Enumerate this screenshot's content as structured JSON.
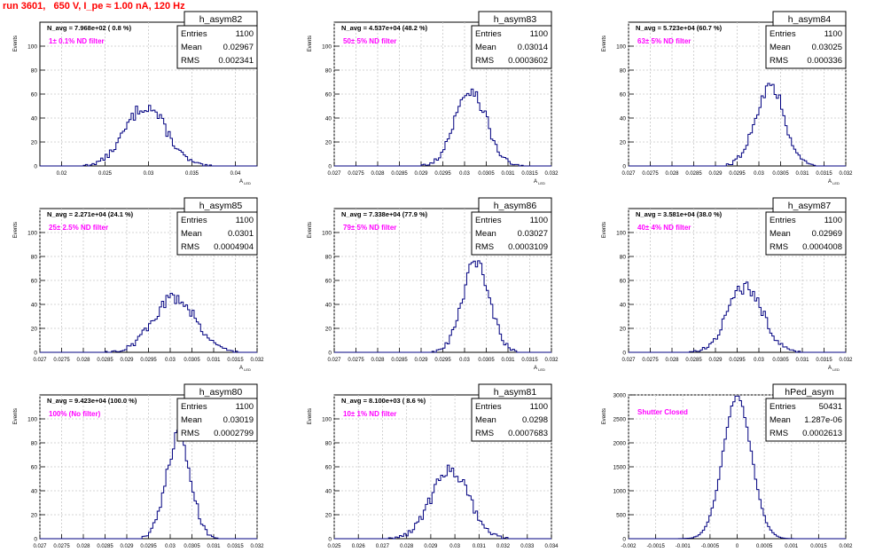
{
  "run_title": "run 3601,   650 V, I_pe ≈ 1.00 nA, 120 Hz",
  "colors": {
    "histogram": "#000080",
    "grid": "#c8c8c8",
    "filter_label": "#ff00ff",
    "run_title": "#ff0000",
    "frame": "#000000"
  },
  "stat_labels": {
    "entries": "Entries",
    "mean": "Mean",
    "rms": "RMS"
  },
  "chart_data": [
    {
      "type": "histogram",
      "name": "h_asym82",
      "navg": "N_avg = 7.968e+02 ( 0.8 %)",
      "filter_label": "1± 0.1% ND filter",
      "ylabel": "Events",
      "xlabel": "A_LED",
      "grid": true,
      "stats": {
        "entries": "1100",
        "mean": "0.02967",
        "rms": "0.002341"
      },
      "xlim": [
        0.0175,
        0.0425
      ],
      "ylim": [
        0,
        120
      ],
      "xticks": [
        0.02,
        0.025,
        0.03,
        0.035,
        0.04
      ],
      "xtick_labels": [
        "0.02",
        "0.025",
        "0.03",
        "0.035",
        "0.04"
      ],
      "yticks": [
        0,
        20,
        40,
        60,
        80,
        100
      ],
      "mean": 0.02967,
      "rms": 0.002341,
      "peak": 50
    },
    {
      "type": "histogram",
      "name": "h_asym83",
      "navg": "N_avg = 4.537e+04 (48.2 %)",
      "filter_label": "50± 5% ND filter",
      "ylabel": "Events",
      "xlabel": "A_LED",
      "grid": true,
      "stats": {
        "entries": "1100",
        "mean": "0.03014",
        "rms": "0.0003602"
      },
      "xlim": [
        0.027,
        0.032
      ],
      "ylim": [
        0,
        120
      ],
      "xticks": [
        0.027,
        0.0275,
        0.028,
        0.0285,
        0.029,
        0.0295,
        0.03,
        0.0305,
        0.031,
        0.0315,
        0.032
      ],
      "xtick_labels": [
        "0.027",
        "0.0275",
        "0.028",
        "0.0285",
        "0.029",
        "0.0295",
        "0.03",
        "0.0305",
        "0.031",
        "0.0315",
        "0.032"
      ],
      "yticks": [
        0,
        20,
        40,
        60,
        80,
        100
      ],
      "mean": 0.03014,
      "rms": 0.0003602,
      "peak": 64
    },
    {
      "type": "histogram",
      "name": "h_asym84",
      "navg": "N_avg = 5.723e+04 (60.7 %)",
      "filter_label": "63± 5% ND filter",
      "ylabel": "Events",
      "xlabel": "A_LED",
      "grid": true,
      "stats": {
        "entries": "1100",
        "mean": "0.03025",
        "rms": "0.000336"
      },
      "xlim": [
        0.027,
        0.032
      ],
      "ylim": [
        0,
        120
      ],
      "xticks": [
        0.027,
        0.0275,
        0.028,
        0.0285,
        0.029,
        0.0295,
        0.03,
        0.0305,
        0.031,
        0.0315,
        0.032
      ],
      "xtick_labels": [
        "0.027",
        "0.0275",
        "0.028",
        "0.0285",
        "0.029",
        "0.0295",
        "0.03",
        "0.0305",
        "0.031",
        "0.0315",
        "0.032"
      ],
      "yticks": [
        0,
        20,
        40,
        60,
        80,
        100
      ],
      "mean": 0.03025,
      "rms": 0.000336,
      "peak": 67
    },
    {
      "type": "histogram",
      "name": "h_asym85",
      "navg": "N_avg = 2.271e+04 (24.1 %)",
      "filter_label": "25± 2.5% ND filter",
      "ylabel": "Events",
      "xlabel": "A_LED",
      "grid": true,
      "stats": {
        "entries": "1100",
        "mean": "0.0301",
        "rms": "0.0004904"
      },
      "xlim": [
        0.027,
        0.032
      ],
      "ylim": [
        0,
        120
      ],
      "xticks": [
        0.027,
        0.0275,
        0.028,
        0.0285,
        0.029,
        0.0295,
        0.03,
        0.0305,
        0.031,
        0.0315,
        0.032
      ],
      "xtick_labels": [
        "0.027",
        "0.0275",
        "0.028",
        "0.0285",
        "0.029",
        "0.0295",
        "0.03",
        "0.0305",
        "0.031",
        "0.0315",
        "0.032"
      ],
      "yticks": [
        0,
        20,
        40,
        60,
        80,
        100
      ],
      "mean": 0.0301,
      "rms": 0.0004904,
      "peak": 46
    },
    {
      "type": "histogram",
      "name": "h_asym86",
      "navg": "N_avg = 7.338e+04 (77.9 %)",
      "filter_label": "79± 5% ND filter",
      "ylabel": "Events",
      "xlabel": "A_LED",
      "grid": true,
      "stats": {
        "entries": "1100",
        "mean": "0.03027",
        "rms": "0.0003109"
      },
      "xlim": [
        0.027,
        0.032
      ],
      "ylim": [
        0,
        120
      ],
      "xticks": [
        0.027,
        0.0275,
        0.028,
        0.0285,
        0.029,
        0.0295,
        0.03,
        0.0305,
        0.031,
        0.0315,
        0.032
      ],
      "xtick_labels": [
        "0.027",
        "0.0275",
        "0.028",
        "0.0285",
        "0.029",
        "0.0295",
        "0.03",
        "0.0305",
        "0.031",
        "0.0315",
        "0.032"
      ],
      "yticks": [
        0,
        20,
        40,
        60,
        80,
        100
      ],
      "mean": 0.03027,
      "rms": 0.0003109,
      "peak": 75
    },
    {
      "type": "histogram",
      "name": "h_asym87",
      "navg": "N_avg = 3.581e+04 (38.0 %)",
      "filter_label": "40± 4% ND filter",
      "ylabel": "Events",
      "xlabel": "A_LED",
      "grid": true,
      "stats": {
        "entries": "1100",
        "mean": "0.02969",
        "rms": "0.0004008"
      },
      "xlim": [
        0.027,
        0.032
      ],
      "ylim": [
        0,
        120
      ],
      "xticks": [
        0.027,
        0.0275,
        0.028,
        0.0285,
        0.029,
        0.0295,
        0.03,
        0.0305,
        0.031,
        0.0315,
        0.032
      ],
      "xtick_labels": [
        "0.027",
        "0.0275",
        "0.028",
        "0.0285",
        "0.029",
        "0.0295",
        "0.03",
        "0.0305",
        "0.031",
        "0.0315",
        "0.032"
      ],
      "yticks": [
        0,
        20,
        40,
        60,
        80,
        100
      ],
      "mean": 0.02969,
      "rms": 0.0004008,
      "peak": 55
    },
    {
      "type": "histogram",
      "name": "h_asym80",
      "navg": "N_avg = 9.423e+04 (100.0 %)",
      "filter_label": "100% (No filter)",
      "ylabel": "Events",
      "xlabel": "A_LED",
      "grid": true,
      "stats": {
        "entries": "1100",
        "mean": "0.03019",
        "rms": "0.0002799"
      },
      "xlim": [
        0.027,
        0.032
      ],
      "ylim": [
        0,
        120
      ],
      "xticks": [
        0.027,
        0.0275,
        0.028,
        0.0285,
        0.029,
        0.0295,
        0.03,
        0.0305,
        0.031,
        0.0315,
        0.032
      ],
      "xtick_labels": [
        "0.027",
        "0.0275",
        "0.028",
        "0.0285",
        "0.029",
        "0.0295",
        "0.03",
        "0.0305",
        "0.031",
        "0.0315",
        "0.032"
      ],
      "yticks": [
        0,
        20,
        40,
        60,
        80,
        100
      ],
      "mean": 0.03019,
      "rms": 0.0002799,
      "peak": 85
    },
    {
      "type": "histogram",
      "name": "h_asym81",
      "navg": "N_avg = 8.100e+03 ( 8.6 %)",
      "filter_label": "10± 1% ND filter",
      "ylabel": "Events",
      "xlabel": "A_LED",
      "grid": true,
      "stats": {
        "entries": "1100",
        "mean": "0.0298",
        "rms": "0.0007683"
      },
      "xlim": [
        0.025,
        0.034
      ],
      "ylim": [
        0,
        120
      ],
      "xticks": [
        0.025,
        0.026,
        0.027,
        0.028,
        0.029,
        0.03,
        0.031,
        0.032,
        0.033,
        0.034
      ],
      "xtick_labels": [
        "0.025",
        "0.026",
        "0.027",
        "0.028",
        "0.029",
        "0.03",
        "0.031",
        "0.032",
        "0.033",
        "0.034"
      ],
      "yticks": [
        0,
        20,
        40,
        60,
        80,
        100
      ],
      "mean": 0.0298,
      "rms": 0.0007683,
      "peak": 58
    },
    {
      "type": "histogram",
      "name": "hPed_asym",
      "navg": "",
      "filter_label": "Shutter Closed",
      "ylabel": "Events",
      "xlabel": "",
      "grid": true,
      "stats": {
        "entries": "50431",
        "mean": "1.287e-06",
        "rms": "0.0002613"
      },
      "xlim": [
        -0.002,
        0.002
      ],
      "ylim": [
        0,
        3000
      ],
      "xticks": [
        -0.002,
        -0.0015,
        -0.001,
        -0.0005,
        0,
        0.0005,
        0.001,
        0.0015,
        0.002
      ],
      "xtick_labels": [
        "-0.002",
        "-0.0015",
        "-0.001",
        "-0.0005",
        "0",
        "0.0005",
        "0.001",
        "0.0015",
        "0.002"
      ],
      "yticks": [
        0,
        500,
        1000,
        1500,
        2000,
        2500,
        3000
      ],
      "mean": 0.0,
      "rms": 0.0002613,
      "peak": 2950
    }
  ]
}
